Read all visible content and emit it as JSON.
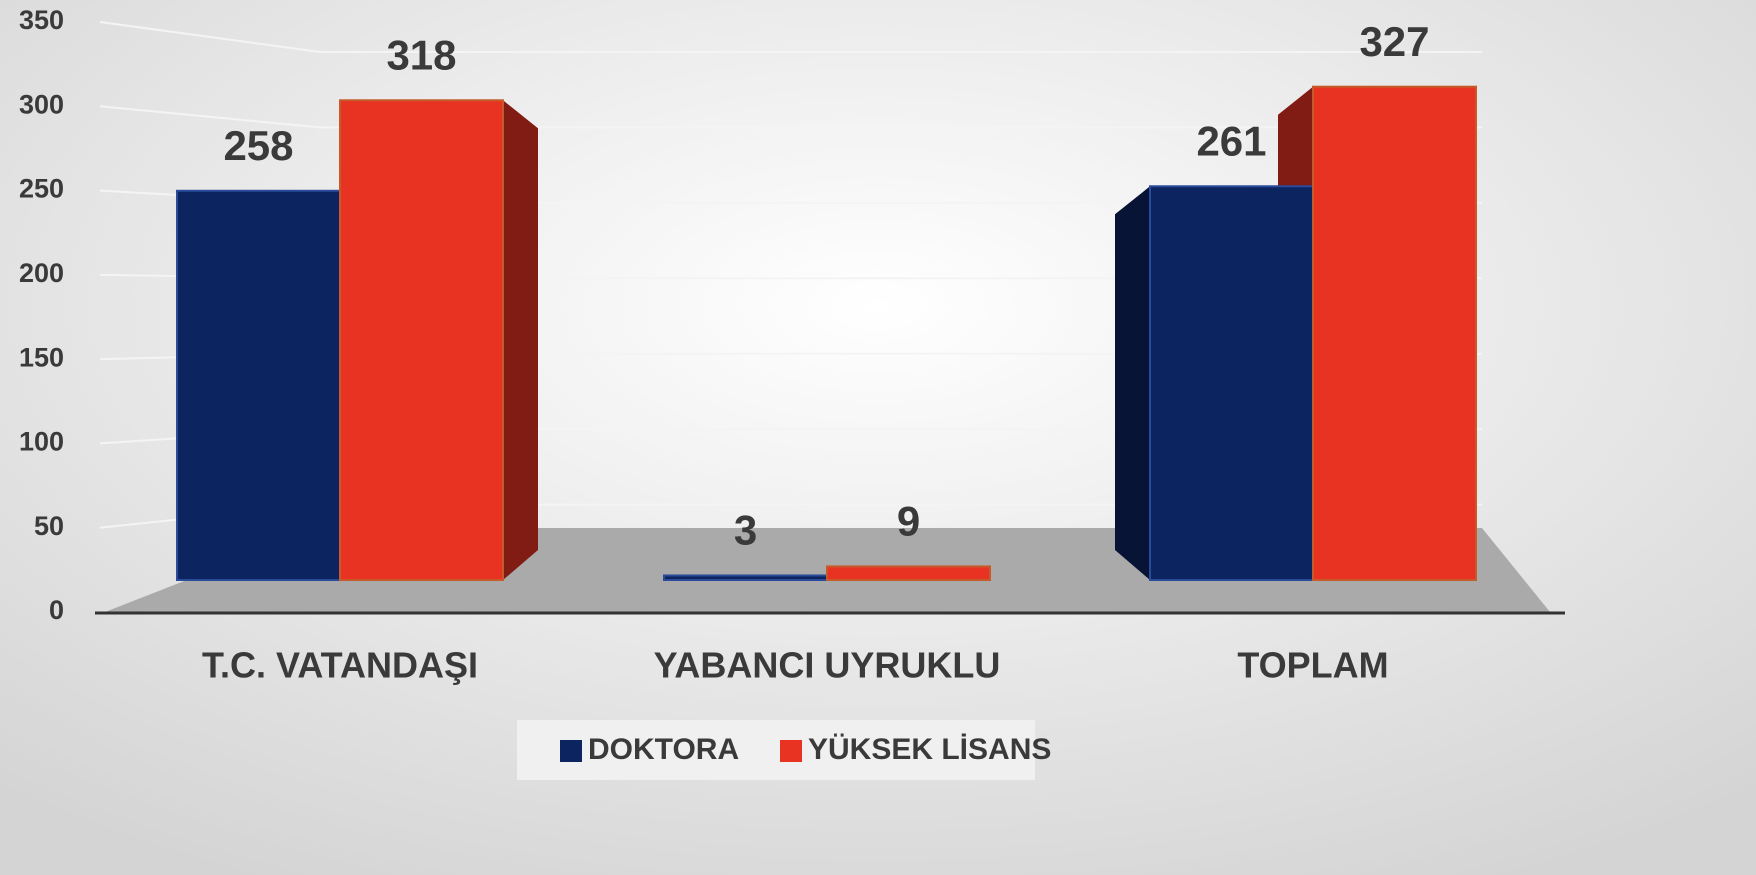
{
  "chart_data": {
    "type": "bar3d",
    "categories": [
      "T.C. VATANDAŞI",
      "YABANCI UYRUKLU",
      "TOPLAM"
    ],
    "series": [
      {
        "name": "DOKTORA",
        "color": "#0c2460",
        "values": [
          258,
          3,
          261
        ]
      },
      {
        "name": "YÜKSEK LİSANS",
        "color": "#e83323",
        "values": [
          318,
          9,
          327
        ]
      }
    ],
    "ylim": [
      0,
      350
    ],
    "yticks": [
      0,
      50,
      100,
      150,
      200,
      250,
      300,
      350
    ],
    "grid": true,
    "legend": "bottom"
  }
}
